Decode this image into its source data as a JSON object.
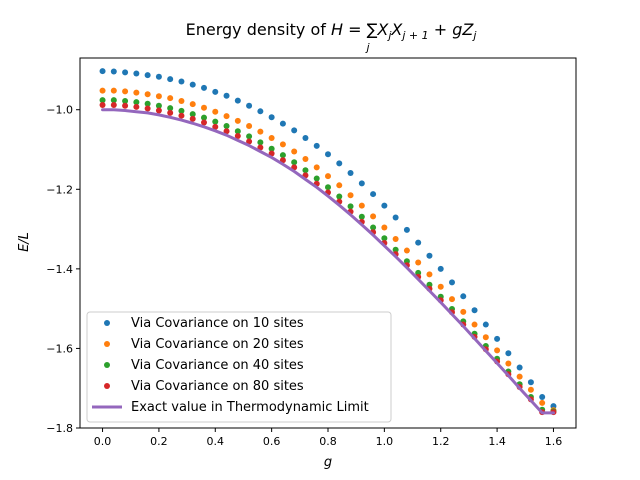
{
  "chart_data": {
    "type": "scatter",
    "title": "Energy density of H = ∑ⱼ XⱼXⱼ₊₁ + gZⱼ",
    "title_parts": {
      "prefix": "Energy density of ",
      "H": "H",
      "eq": " = ",
      "sum": "∑",
      "sum_sub": "j",
      "X": "X",
      "sub_j": "j",
      "sub_j1": "j + 1",
      "plus": " + ",
      "g": "g",
      "Z": "Z"
    },
    "xlabel": "g",
    "ylabel": "E/L",
    "xlim": [
      -0.08,
      1.68
    ],
    "ylim": [
      -1.8,
      -0.87
    ],
    "xticks": [
      0.0,
      0.2,
      0.4,
      0.6,
      0.8,
      1.0,
      1.2,
      1.4,
      1.6
    ],
    "xtick_labels": [
      "0.0",
      "0.2",
      "0.4",
      "0.6",
      "0.8",
      "1.0",
      "1.2",
      "1.4",
      "1.6"
    ],
    "yticks": [
      -1.0,
      -1.2,
      -1.4,
      -1.6,
      -1.8
    ],
    "ytick_labels": [
      "−1.0",
      "−1.2",
      "−1.4",
      "−1.6",
      "−1.8"
    ],
    "grid": false,
    "legend_position": "lower-left",
    "x": [
      0.0,
      0.04,
      0.08,
      0.12,
      0.16,
      0.2,
      0.24,
      0.28,
      0.32,
      0.36,
      0.4,
      0.44,
      0.48,
      0.52,
      0.56,
      0.6,
      0.64,
      0.68,
      0.72,
      0.76,
      0.8,
      0.84,
      0.88,
      0.92,
      0.96,
      1.0,
      1.04,
      1.08,
      1.12,
      1.16,
      1.2,
      1.24,
      1.28,
      1.32,
      1.36,
      1.4,
      1.44,
      1.48,
      1.52,
      1.56,
      1.6
    ],
    "series": [
      {
        "name": "Via Covariance on 10 sites",
        "color": "#1f77b4",
        "kind": "points",
        "values": [
          -0.903,
          -0.904,
          -0.906,
          -0.909,
          -0.913,
          -0.917,
          -0.923,
          -0.929,
          -0.937,
          -0.945,
          -0.955,
          -0.965,
          -0.977,
          -0.99,
          -1.004,
          -1.019,
          -1.035,
          -1.052,
          -1.071,
          -1.091,
          -1.112,
          -1.135,
          -1.159,
          -1.185,
          -1.212,
          -1.241,
          -1.271,
          -1.302,
          -1.334,
          -1.367,
          -1.4,
          -1.434,
          -1.469,
          -1.504,
          -1.54,
          -1.576,
          -1.612,
          -1.648,
          -1.685,
          -1.722,
          -1.745
        ]
      },
      {
        "name": "Via Covariance on 20 sites",
        "color": "#ff7f0e",
        "kind": "points",
        "values": [
          -0.952,
          -0.952,
          -0.954,
          -0.957,
          -0.961,
          -0.966,
          -0.971,
          -0.978,
          -0.986,
          -0.995,
          -1.005,
          -1.016,
          -1.028,
          -1.041,
          -1.055,
          -1.071,
          -1.087,
          -1.105,
          -1.124,
          -1.145,
          -1.167,
          -1.19,
          -1.215,
          -1.241,
          -1.268,
          -1.296,
          -1.325,
          -1.354,
          -1.384,
          -1.414,
          -1.445,
          -1.476,
          -1.508,
          -1.54,
          -1.572,
          -1.605,
          -1.638,
          -1.671,
          -1.704,
          -1.737,
          -1.755
        ]
      },
      {
        "name": "Via Covariance on 40 sites",
        "color": "#2ca02c",
        "kind": "points",
        "values": [
          -0.976,
          -0.976,
          -0.978,
          -0.981,
          -0.985,
          -0.99,
          -0.996,
          -1.003,
          -1.011,
          -1.02,
          -1.03,
          -1.041,
          -1.054,
          -1.067,
          -1.082,
          -1.098,
          -1.114,
          -1.132,
          -1.152,
          -1.173,
          -1.195,
          -1.218,
          -1.243,
          -1.269,
          -1.296,
          -1.323,
          -1.352,
          -1.381,
          -1.41,
          -1.44,
          -1.47,
          -1.501,
          -1.532,
          -1.563,
          -1.594,
          -1.626,
          -1.658,
          -1.69,
          -1.722,
          -1.754,
          -1.758
        ]
      },
      {
        "name": "Via Covariance on 80 sites",
        "color": "#d62728",
        "kind": "points",
        "values": [
          -0.988,
          -0.988,
          -0.99,
          -0.993,
          -0.997,
          -1.002,
          -1.008,
          -1.015,
          -1.023,
          -1.032,
          -1.043,
          -1.054,
          -1.066,
          -1.08,
          -1.095,
          -1.11,
          -1.127,
          -1.145,
          -1.165,
          -1.186,
          -1.208,
          -1.231,
          -1.256,
          -1.282,
          -1.308,
          -1.335,
          -1.363,
          -1.391,
          -1.42,
          -1.45,
          -1.479,
          -1.509,
          -1.54,
          -1.571,
          -1.602,
          -1.633,
          -1.665,
          -1.697,
          -1.728,
          -1.76,
          -1.76
        ]
      },
      {
        "name": "Exact value in Thermodynamic Limit",
        "color": "#9467bd",
        "kind": "line",
        "values": [
          -1.0,
          -1.0,
          -1.002,
          -1.005,
          -1.008,
          -1.013,
          -1.019,
          -1.026,
          -1.034,
          -1.043,
          -1.053,
          -1.064,
          -1.077,
          -1.09,
          -1.105,
          -1.12,
          -1.137,
          -1.155,
          -1.175,
          -1.195,
          -1.217,
          -1.24,
          -1.264,
          -1.289,
          -1.315,
          -1.342,
          -1.369,
          -1.397,
          -1.426,
          -1.455,
          -1.484,
          -1.514,
          -1.544,
          -1.575,
          -1.606,
          -1.637,
          -1.668,
          -1.7,
          -1.731,
          -1.762,
          -1.762
        ]
      }
    ]
  }
}
